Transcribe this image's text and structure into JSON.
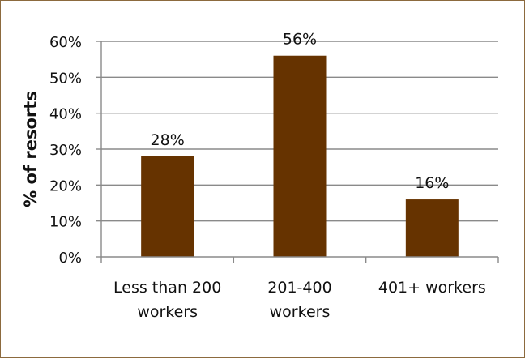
{
  "chart_data": {
    "type": "bar",
    "title": "",
    "xlabel": "",
    "ylabel": "% of resorts",
    "categories": [
      [
        "Less than 200",
        "workers"
      ],
      [
        "201-400",
        "workers"
      ],
      [
        "401+ workers"
      ]
    ],
    "values": [
      28,
      56,
      16
    ],
    "data_labels": [
      "28%",
      "56%",
      "16%"
    ],
    "yticks": [
      "0%",
      "10%",
      "20%",
      "30%",
      "40%",
      "50%",
      "60%"
    ],
    "ylim": [
      0,
      60
    ],
    "ytick_step": 10,
    "grid": true,
    "legend": "none",
    "bar_color": "#663300",
    "grid_color": "#8a8a8a",
    "frame_color": "#8c6a3e"
  }
}
